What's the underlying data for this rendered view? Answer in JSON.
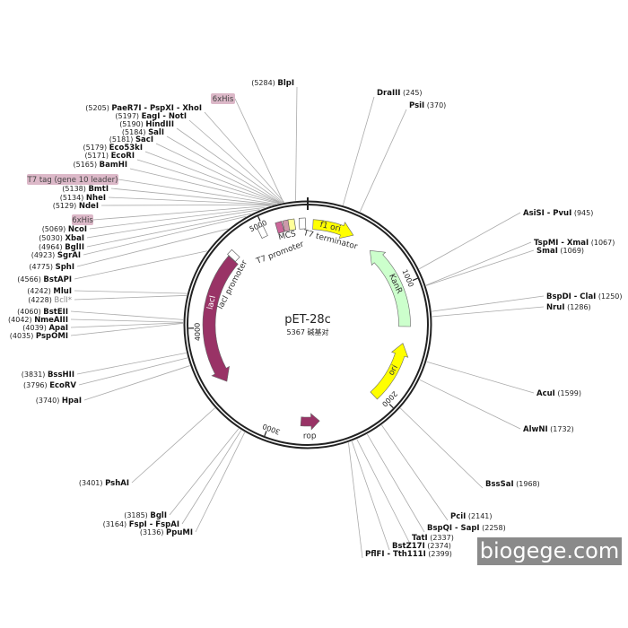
{
  "plasmid": {
    "name": "pET-28c",
    "size_label": "5367 碱基对",
    "length": 5367
  },
  "ticks": [
    "1000",
    "2000",
    "3000",
    "4000",
    "5000"
  ],
  "enzymes": [
    {
      "name": "BlpI",
      "pos": 5284
    },
    {
      "name": "PaeR7I - PspXI - XhoI",
      "pos": 5205
    },
    {
      "name": "EagI - NotI",
      "pos": 5197
    },
    {
      "name": "HindIII",
      "pos": 5190
    },
    {
      "name": "SalI",
      "pos": 5184
    },
    {
      "name": "SacI",
      "pos": 5181
    },
    {
      "name": "Eco53kI",
      "pos": 5179
    },
    {
      "name": "EcoRI",
      "pos": 5171
    },
    {
      "name": "BamHI",
      "pos": 5165
    },
    {
      "name": "BmtI",
      "pos": 5138
    },
    {
      "name": "NheI",
      "pos": 5134
    },
    {
      "name": "NdeI",
      "pos": 5129
    },
    {
      "name": "NcoI",
      "pos": 5069
    },
    {
      "name": "XbaI",
      "pos": 5030
    },
    {
      "name": "BglII",
      "pos": 4964
    },
    {
      "name": "SgrAI",
      "pos": 4923
    },
    {
      "name": "SphI",
      "pos": 4775
    },
    {
      "name": "BstAPI",
      "pos": 4566
    },
    {
      "name": "MluI",
      "pos": 4242
    },
    {
      "name": "BclI*",
      "pos": 4228,
      "style": "gray"
    },
    {
      "name": "BstEII",
      "pos": 4060
    },
    {
      "name": "NmeAIII",
      "pos": 4042
    },
    {
      "name": "ApaI",
      "pos": 4039
    },
    {
      "name": "PspOMI",
      "pos": 4035
    },
    {
      "name": "BssHII",
      "pos": 3831
    },
    {
      "name": "EcoRV",
      "pos": 3796
    },
    {
      "name": "HpaI",
      "pos": 3740
    },
    {
      "name": "PshAI",
      "pos": 3401
    },
    {
      "name": "BglI",
      "pos": 3185
    },
    {
      "name": "FspI - FspAI",
      "pos": 3164
    },
    {
      "name": "PpuMI",
      "pos": 3136
    },
    {
      "name": "DraIII",
      "pos": 245
    },
    {
      "name": "PsiI",
      "pos": 370
    },
    {
      "name": "AsiSI - PvuI",
      "pos": 945
    },
    {
      "name": "TspMI - XmaI",
      "pos": 1067
    },
    {
      "name": "SmaI",
      "pos": 1069
    },
    {
      "name": "BspDI - ClaI",
      "pos": 1250
    },
    {
      "name": "NruI",
      "pos": 1286
    },
    {
      "name": "AcuI",
      "pos": 1599
    },
    {
      "name": "AlwNI",
      "pos": 1732
    },
    {
      "name": "BssSaI",
      "pos": 1968
    },
    {
      "name": "PciI",
      "pos": 2141
    },
    {
      "name": "BspQI - SapI",
      "pos": 2258
    },
    {
      "name": "TatI",
      "pos": 2337
    },
    {
      "name": "BstZ17I",
      "pos": 2374
    },
    {
      "name": "PflFI - Tth111I",
      "pos": 2399
    }
  ],
  "boxed_features": [
    {
      "name": "6xHis",
      "pos": 5200
    },
    {
      "name": "T7 tag (gene 10 leader)",
      "pos": 5150
    },
    {
      "name": "6xHis",
      "pos": 5110
    }
  ],
  "features": [
    {
      "name": "f1 ori",
      "color": "#ffff00",
      "text_color": "#333333"
    },
    {
      "name": "KanR",
      "color": "#ccffcc",
      "text_color": "#333333"
    },
    {
      "name": "ori",
      "color": "#ffff00",
      "text_color": "#333333"
    },
    {
      "name": "rop",
      "color": "#993366",
      "text_color": "#333333"
    },
    {
      "name": "lacI",
      "color": "#993366",
      "text_color": "#ffffff"
    },
    {
      "name": "lacI promoter",
      "color": "#ffffff"
    },
    {
      "name": "T7 promoter",
      "color": "#ffffff"
    },
    {
      "name": "MCS",
      "color": "#cc99aa"
    },
    {
      "name": "T7 terminator",
      "color": "#ffffff"
    }
  ],
  "colors": {
    "box_label": "#dcb8c8",
    "ring": "#222222"
  },
  "watermark": "biogege.com"
}
